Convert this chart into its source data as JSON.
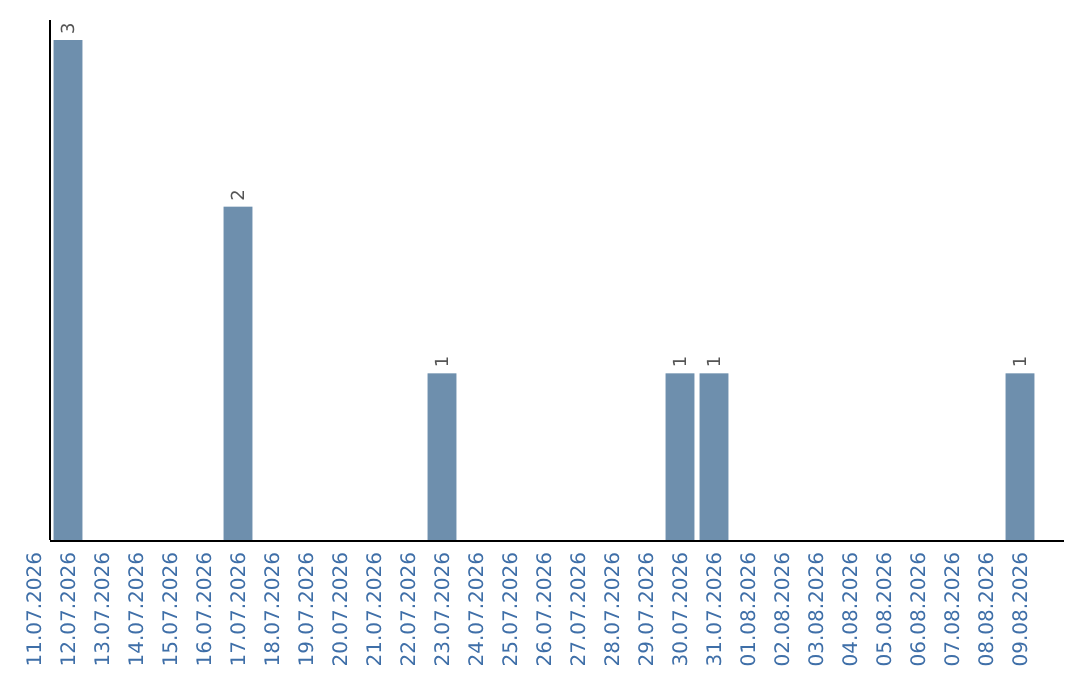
{
  "chart_data": {
    "type": "bar",
    "categories": [
      "11.07.2026",
      "12.07.2026",
      "13.07.2026",
      "14.07.2026",
      "15.07.2026",
      "16.07.2026",
      "17.07.2026",
      "18.07.2026",
      "19.07.2026",
      "20.07.2026",
      "21.07.2026",
      "22.07.2026",
      "23.07.2026",
      "24.07.2026",
      "25.07.2026",
      "26.07.2026",
      "27.07.2026",
      "28.07.2026",
      "29.07.2026",
      "30.07.2026",
      "31.07.2026",
      "01.08.2026",
      "02.08.2026",
      "03.08.2026",
      "04.08.2026",
      "05.08.2026",
      "06.08.2026",
      "07.08.2026",
      "08.08.2026",
      "09.08.2026"
    ],
    "values": [
      0,
      3,
      0,
      0,
      0,
      0,
      2,
      0,
      0,
      0,
      0,
      0,
      1,
      0,
      0,
      0,
      0,
      0,
      0,
      1,
      1,
      0,
      0,
      0,
      0,
      0,
      0,
      0,
      0,
      1
    ],
    "value_labels": [
      null,
      "3",
      null,
      null,
      null,
      null,
      "2",
      null,
      null,
      null,
      null,
      null,
      "1",
      null,
      null,
      null,
      null,
      null,
      null,
      "1",
      "1",
      null,
      null,
      null,
      null,
      null,
      null,
      null,
      null,
      "1"
    ],
    "color": "#6e8fad"
  }
}
